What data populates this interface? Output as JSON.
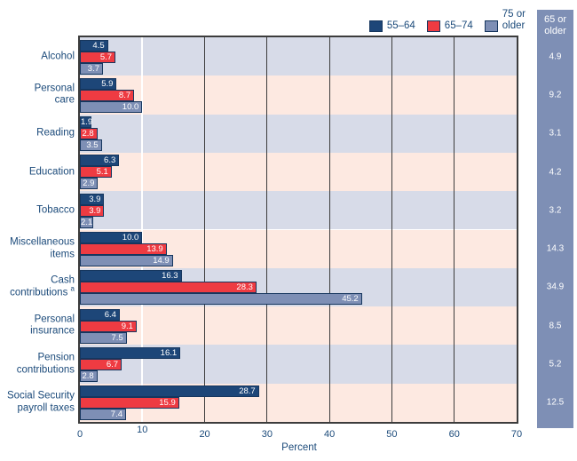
{
  "colors": {
    "navy_series": "#1d4678",
    "red_series": "#ee3b42",
    "slate_series": "#7e8fb5",
    "bar_border": "#16365e",
    "band_blue": "#d7dbe8",
    "band_pink": "#fde9e1",
    "grid_dark": "#3c3c3c",
    "grid_light": "#ffffff",
    "side_column_bg": "#7e8fb5",
    "text_navy": "#1b4a7a",
    "value_text": "#ffffff"
  },
  "chart_data": {
    "type": "bar",
    "orientation": "horizontal",
    "xlabel": "Percent",
    "xlim": [
      0,
      70
    ],
    "xticks": [
      0,
      10,
      20,
      30,
      40,
      50,
      60,
      70
    ],
    "grid": {
      "dark_lines_at": [
        20,
        30,
        40,
        50,
        60
      ],
      "light_lines_at": [
        10
      ]
    },
    "legend_position": "top-right",
    "row_band_pattern": [
      "blue",
      "pink"
    ],
    "categories": [
      {
        "label": "Alcohol",
        "lines": [
          "Alcohol"
        ]
      },
      {
        "label": "Personal care",
        "lines": [
          "Personal",
          "care"
        ]
      },
      {
        "label": "Reading",
        "lines": [
          "Reading"
        ]
      },
      {
        "label": "Education",
        "lines": [
          "Education"
        ]
      },
      {
        "label": "Tobacco",
        "lines": [
          "Tobacco"
        ]
      },
      {
        "label": "Miscellaneous items",
        "lines": [
          "Miscellaneous",
          "items"
        ]
      },
      {
        "label": "Cash contributions",
        "lines": [
          "Cash",
          "contributions"
        ],
        "footnote": "a"
      },
      {
        "label": "Personal insurance",
        "lines": [
          "Personal",
          "insurance"
        ]
      },
      {
        "label": "Pension contributions",
        "lines": [
          "Pension",
          "contributions"
        ]
      },
      {
        "label": "Social Security payroll taxes",
        "lines": [
          "Social Security",
          "payroll taxes"
        ]
      }
    ],
    "series": [
      {
        "name": "55–64",
        "color": "#1d4678",
        "values": [
          4.5,
          5.9,
          1.9,
          6.3,
          3.9,
          10.0,
          16.3,
          6.4,
          16.1,
          28.7
        ]
      },
      {
        "name": "65–74",
        "color": "#ee3b42",
        "values": [
          5.7,
          8.7,
          2.8,
          5.1,
          3.9,
          13.9,
          28.3,
          9.1,
          6.7,
          15.9
        ]
      },
      {
        "name": "75 or older",
        "color": "#7e8fb5",
        "label_lines": [
          "75 or",
          "older"
        ],
        "values": [
          3.7,
          10.0,
          3.5,
          2.9,
          2.1,
          14.9,
          45.2,
          7.5,
          2.8,
          7.4
        ]
      }
    ],
    "side_column": {
      "header": "65 or older",
      "header_lines": [
        "65 or",
        "older"
      ],
      "values": [
        4.9,
        9.2,
        3.1,
        4.2,
        3.2,
        14.3,
        34.9,
        8.5,
        5.2,
        12.5
      ]
    }
  }
}
